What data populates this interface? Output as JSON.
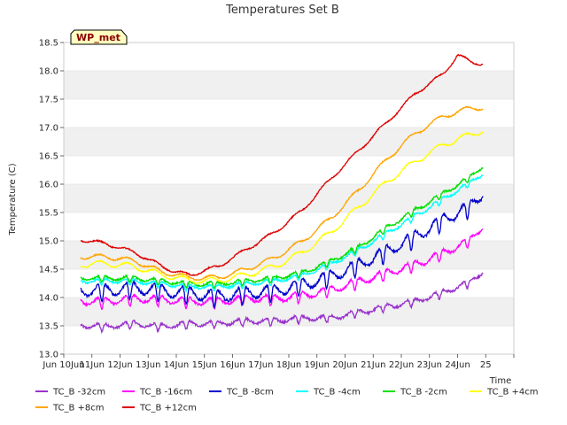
{
  "chart_data": {
    "type": "line",
    "title": "Temperatures Set B",
    "xlabel": "Time",
    "ylabel": "Temperature (C)",
    "ylim": [
      13.0,
      18.5
    ],
    "xlim": [
      9.0,
      25.0
    ],
    "y_ticks": [
      "13.0",
      "13.5",
      "14.0",
      "14.5",
      "15.0",
      "15.5",
      "16.0",
      "16.5",
      "17.0",
      "17.5",
      "18.0",
      "18.5"
    ],
    "x_tick_values": [
      9,
      10,
      11,
      12,
      13,
      14,
      15,
      16,
      17,
      18,
      19,
      20,
      21,
      22,
      23,
      24,
      25
    ],
    "x_ticks": [
      "Jun 10Jun",
      "11Jun",
      "12Jun",
      "13Jun",
      "14Jun",
      "15Jun",
      "16Jun",
      "17Jun",
      "18Jun",
      "19Jun",
      "20Jun",
      "21Jun",
      "22Jun",
      "23Jun",
      "24Jun",
      "25",
      ""
    ],
    "grid": "horizontal-bands",
    "badge": "WP_met",
    "legend_position": "bottom",
    "series": [
      {
        "name": "TC_B -32cm",
        "color": "#9932cc",
        "amp": 0.15,
        "noise": 0.04,
        "x": [
          9.6,
          10.5,
          11.5,
          12.5,
          13.5,
          14.5,
          15.5,
          16.5,
          17.5,
          18.5,
          19.5,
          20.5,
          21.5,
          22.5,
          23.5,
          23.9
        ],
        "y": [
          13.52,
          13.5,
          13.55,
          13.5,
          13.55,
          13.55,
          13.6,
          13.6,
          13.65,
          13.65,
          13.75,
          13.85,
          13.95,
          14.1,
          14.3,
          14.47
        ]
      },
      {
        "name": "TC_B -16cm",
        "color": "#ff00ff",
        "amp": 0.22,
        "noise": 0.04,
        "x": [
          9.6,
          10.5,
          11.5,
          12.5,
          13.5,
          14.5,
          15.5,
          16.5,
          17.5,
          18.5,
          19.5,
          20.5,
          21.5,
          22.5,
          23.5,
          23.9
        ],
        "y": [
          13.95,
          13.95,
          14.0,
          13.98,
          13.95,
          13.95,
          14.0,
          14.0,
          14.05,
          14.15,
          14.3,
          14.45,
          14.6,
          14.8,
          15.05,
          15.28
        ]
      },
      {
        "name": "TC_B -8cm",
        "color": "#0000cd",
        "amp": 0.35,
        "noise": 0.05,
        "x": [
          9.6,
          10.5,
          11.5,
          12.5,
          13.5,
          14.5,
          15.5,
          16.5,
          17.5,
          18.5,
          19.5,
          20.5,
          21.5,
          22.5,
          23.5,
          23.9
        ],
        "y": [
          14.15,
          14.15,
          14.2,
          14.15,
          14.1,
          14.05,
          14.1,
          14.15,
          14.25,
          14.4,
          14.6,
          14.85,
          15.1,
          15.4,
          15.65,
          15.88
        ]
      },
      {
        "name": "TC_B -4cm",
        "color": "#00ffff",
        "amp": 0.12,
        "noise": 0.03,
        "x": [
          9.6,
          10.5,
          11.5,
          12.5,
          13.5,
          14.5,
          15.5,
          16.5,
          17.5,
          18.5,
          19.5,
          20.5,
          21.5,
          22.5,
          23.5,
          23.9
        ],
        "y": [
          14.3,
          14.3,
          14.3,
          14.25,
          14.2,
          14.2,
          14.25,
          14.3,
          14.4,
          14.6,
          14.85,
          15.15,
          15.45,
          15.75,
          16.05,
          16.2
        ]
      },
      {
        "name": "TC_B -2cm",
        "color": "#00e000",
        "amp": 0.12,
        "noise": 0.03,
        "x": [
          9.6,
          10.5,
          11.5,
          12.5,
          13.5,
          14.5,
          15.5,
          16.5,
          17.5,
          18.5,
          19.5,
          20.5,
          21.5,
          22.5,
          23.5,
          23.9
        ],
        "y": [
          14.35,
          14.35,
          14.35,
          14.3,
          14.25,
          14.25,
          14.3,
          14.35,
          14.45,
          14.65,
          14.9,
          15.25,
          15.55,
          15.85,
          16.15,
          16.33
        ]
      },
      {
        "name": "TC_B +4cm",
        "color": "#ffff00",
        "amp": 0.05,
        "noise": 0.02,
        "x": [
          9.6,
          10.5,
          11.5,
          12.5,
          13.5,
          14.5,
          15.5,
          16.5,
          17.5,
          18.5,
          19.5,
          20.5,
          21.5,
          22.5,
          23.5,
          23.9
        ],
        "y": [
          14.58,
          14.6,
          14.55,
          14.4,
          14.3,
          14.3,
          14.4,
          14.55,
          14.8,
          15.15,
          15.6,
          16.05,
          16.4,
          16.7,
          16.88,
          16.95
        ]
      },
      {
        "name": "TC_B +8cm",
        "color": "#ffa500",
        "amp": 0.04,
        "noise": 0.02,
        "x": [
          9.6,
          10.5,
          11.5,
          12.5,
          13.5,
          14.5,
          15.5,
          16.5,
          17.5,
          18.5,
          19.5,
          20.5,
          21.5,
          22.5,
          23.5,
          23.9
        ],
        "y": [
          14.72,
          14.72,
          14.65,
          14.45,
          14.35,
          14.35,
          14.5,
          14.7,
          15.0,
          15.4,
          15.9,
          16.45,
          16.9,
          17.2,
          17.35,
          17.35
        ]
      },
      {
        "name": "TC_B +12cm",
        "color": "#dd0000",
        "amp": 0.03,
        "noise": 0.02,
        "x": [
          9.6,
          10.5,
          11.5,
          12.5,
          13.0,
          13.5,
          14.5,
          15.5,
          16.5,
          17.5,
          18.5,
          19.5,
          20.5,
          21.5,
          22.5,
          23.0,
          23.5,
          23.9
        ],
        "y": [
          15.02,
          14.95,
          14.8,
          14.55,
          14.45,
          14.4,
          14.55,
          14.85,
          15.15,
          15.55,
          16.1,
          16.6,
          17.1,
          17.6,
          17.95,
          18.28,
          18.15,
          18.13
        ]
      }
    ]
  }
}
